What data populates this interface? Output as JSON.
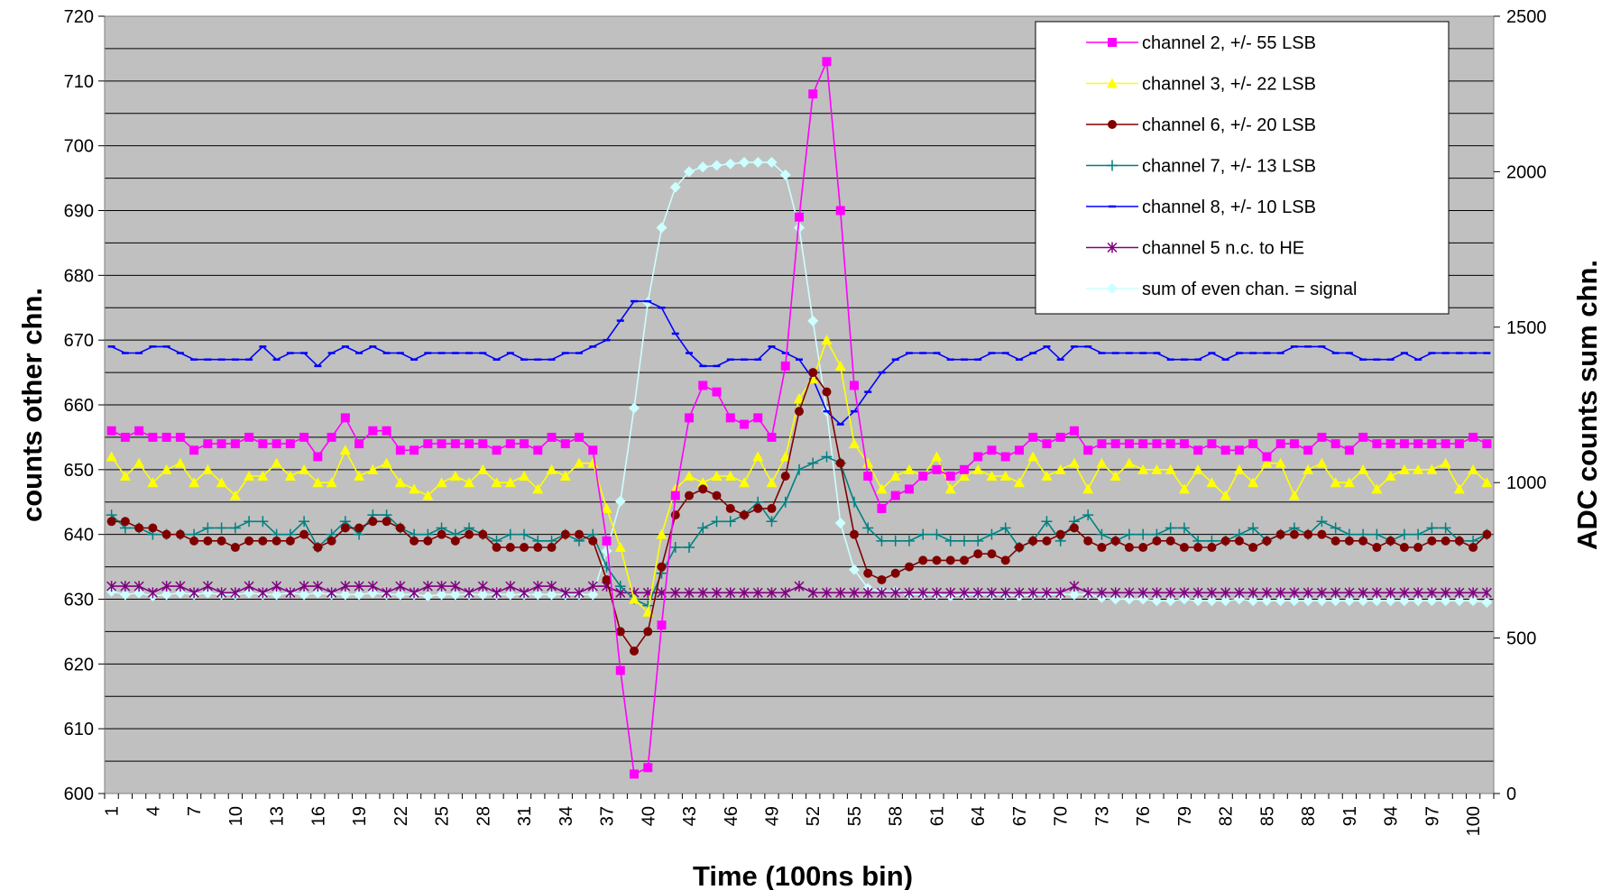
{
  "chart_data": {
    "type": "line",
    "xlabel": "Time (100ns bin)",
    "ylabel": "counts other chn.",
    "y2label": "ADC counts sum chn.",
    "ylim": [
      600,
      720
    ],
    "y2lim": [
      0,
      2500
    ],
    "y_ticks": [
      "600",
      "610",
      "620",
      "630",
      "640",
      "650",
      "660",
      "670",
      "680",
      "690",
      "700",
      "710",
      "720"
    ],
    "y2_ticks": [
      "0",
      "500",
      "1000",
      "1500",
      "2000",
      "2500"
    ],
    "x_ticks": [
      "1",
      "4",
      "7",
      "10",
      "13",
      "16",
      "19",
      "22",
      "25",
      "28",
      "31",
      "34",
      "37",
      "40",
      "43",
      "46",
      "49",
      "52",
      "55",
      "58",
      "61",
      "64",
      "67",
      "70",
      "73",
      "76",
      "79",
      "82",
      "85",
      "88",
      "91",
      "94",
      "97",
      "100"
    ],
    "grid": true,
    "legend_position": "top-right",
    "x": [
      1,
      2,
      3,
      4,
      5,
      6,
      7,
      8,
      9,
      10,
      11,
      12,
      13,
      14,
      15,
      16,
      17,
      18,
      19,
      20,
      21,
      22,
      23,
      24,
      25,
      26,
      27,
      28,
      29,
      30,
      31,
      32,
      33,
      34,
      35,
      36,
      37,
      38,
      39,
      40,
      41,
      42,
      43,
      44,
      45,
      46,
      47,
      48,
      49,
      50,
      51,
      52,
      53,
      54,
      55,
      56,
      57,
      58,
      59,
      60,
      61,
      62,
      63,
      64,
      65,
      66,
      67,
      68,
      69,
      70,
      71,
      72,
      73,
      74,
      75,
      76,
      77,
      78,
      79,
      80,
      81,
      82,
      83,
      84,
      85,
      86,
      87,
      88,
      89,
      90,
      91,
      92,
      93,
      94,
      95,
      96,
      97,
      98,
      99,
      100,
      101
    ],
    "series": [
      {
        "name": "channel 2, +/- 55 LSB",
        "color": "#ff00ff",
        "marker": "square",
        "axis": "left",
        "values": [
          656,
          655,
          656,
          655,
          655,
          655,
          653,
          654,
          654,
          654,
          655,
          654,
          654,
          654,
          655,
          652,
          655,
          658,
          654,
          656,
          656,
          653,
          653,
          654,
          654,
          654,
          654,
          654,
          653,
          654,
          654,
          653,
          655,
          654,
          655,
          653,
          639,
          619,
          603,
          604,
          626,
          646,
          658,
          663,
          662,
          658,
          657,
          658,
          655,
          666,
          689,
          708,
          713,
          690,
          663,
          649,
          644,
          646,
          647,
          649,
          650,
          649,
          650,
          652,
          653,
          652,
          653,
          655,
          654,
          655,
          656,
          653,
          654,
          654,
          654,
          654,
          654,
          654,
          654,
          653,
          654,
          653,
          653,
          654,
          652,
          654,
          654,
          653,
          655,
          654,
          653,
          655,
          654,
          654,
          654,
          654,
          654,
          654,
          654,
          655,
          654
        ]
      },
      {
        "name": "channel 3, +/- 22 LSB",
        "color": "#ffff00",
        "marker": "triangle",
        "axis": "left",
        "values": [
          652,
          649,
          651,
          648,
          650,
          651,
          648,
          650,
          648,
          646,
          649,
          649,
          651,
          649,
          650,
          648,
          648,
          653,
          649,
          650,
          651,
          648,
          647,
          646,
          648,
          649,
          648,
          650,
          648,
          648,
          649,
          647,
          650,
          649,
          651,
          651,
          644,
          638,
          630,
          628,
          640,
          647,
          649,
          648,
          649,
          649,
          648,
          652,
          648,
          652,
          661,
          664,
          670,
          666,
          654,
          651,
          647,
          649,
          650,
          649,
          652,
          647,
          649,
          650,
          649,
          649,
          648,
          652,
          649,
          650,
          651,
          647,
          651,
          649,
          651,
          650,
          650,
          650,
          647,
          650,
          648,
          646,
          650,
          648,
          651,
          651,
          646,
          650,
          651,
          648,
          648,
          650,
          647,
          649,
          650,
          650,
          650,
          651,
          647,
          650,
          648
        ]
      },
      {
        "name": "channel 6, +/- 20 LSB",
        "color": "#800000",
        "marker": "circle",
        "axis": "left",
        "values": [
          642,
          642,
          641,
          641,
          640,
          640,
          639,
          639,
          639,
          638,
          639,
          639,
          639,
          639,
          640,
          638,
          639,
          641,
          641,
          642,
          642,
          641,
          639,
          639,
          640,
          639,
          640,
          640,
          638,
          638,
          638,
          638,
          638,
          640,
          640,
          639,
          633,
          625,
          622,
          625,
          635,
          643,
          646,
          647,
          646,
          644,
          643,
          644,
          644,
          649,
          659,
          665,
          662,
          651,
          640,
          634,
          633,
          634,
          635,
          636,
          636,
          636,
          636,
          637,
          637,
          636,
          638,
          639,
          639,
          640,
          641,
          639,
          638,
          639,
          638,
          638,
          639,
          639,
          638,
          638,
          638,
          639,
          639,
          638,
          639,
          640,
          640,
          640,
          640,
          639,
          639,
          639,
          638,
          639,
          638,
          638,
          639,
          639,
          639,
          638,
          640
        ]
      },
      {
        "name": "channel 7, +/- 13 LSB",
        "color": "#008080",
        "marker": "plus",
        "axis": "left",
        "values": [
          643,
          641,
          641,
          640,
          640,
          640,
          640,
          641,
          641,
          641,
          642,
          642,
          640,
          640,
          642,
          638,
          640,
          642,
          640,
          643,
          643,
          641,
          640,
          640,
          641,
          640,
          641,
          640,
          639,
          640,
          640,
          639,
          639,
          640,
          639,
          640,
          635,
          632,
          630,
          629,
          634,
          638,
          638,
          641,
          642,
          642,
          643,
          645,
          642,
          645,
          650,
          651,
          652,
          651,
          645,
          641,
          639,
          639,
          639,
          640,
          640,
          639,
          639,
          639,
          640,
          641,
          638,
          639,
          642,
          639,
          642,
          643,
          640,
          639,
          640,
          640,
          640,
          641,
          641,
          639,
          639,
          639,
          640,
          641,
          639,
          640,
          641,
          640,
          642,
          641,
          640,
          640,
          640,
          639,
          640,
          640,
          641,
          641,
          639,
          639,
          640
        ]
      },
      {
        "name": "channel 8, +/- 10 LSB",
        "color": "#0000ff",
        "marker": "dash",
        "axis": "left",
        "values": [
          669,
          668,
          668,
          669,
          669,
          668,
          667,
          667,
          667,
          667,
          667,
          669,
          667,
          668,
          668,
          666,
          668,
          669,
          668,
          669,
          668,
          668,
          667,
          668,
          668,
          668,
          668,
          668,
          667,
          668,
          667,
          667,
          667,
          668,
          668,
          669,
          670,
          673,
          676,
          676,
          675,
          671,
          668,
          666,
          666,
          667,
          667,
          667,
          669,
          668,
          667,
          664,
          659,
          657,
          659,
          662,
          665,
          667,
          668,
          668,
          668,
          667,
          667,
          667,
          668,
          668,
          667,
          668,
          669,
          667,
          669,
          669,
          668,
          668,
          668,
          668,
          668,
          667,
          667,
          667,
          668,
          667,
          668,
          668,
          668,
          668,
          669,
          669,
          669,
          668,
          668,
          667,
          667,
          667,
          668,
          667,
          668,
          668,
          668,
          668,
          668
        ]
      },
      {
        "name": "channel 5 n.c. to HE",
        "color": "#800080",
        "marker": "star",
        "axis": "left",
        "values": [
          632,
          632,
          632,
          631,
          632,
          632,
          631,
          632,
          631,
          631,
          632,
          631,
          632,
          631,
          632,
          632,
          631,
          632,
          632,
          632,
          631,
          632,
          631,
          632,
          632,
          632,
          631,
          632,
          631,
          632,
          631,
          632,
          632,
          631,
          631,
          632,
          632,
          631,
          631,
          631,
          631,
          631,
          631,
          631,
          631,
          631,
          631,
          631,
          631,
          631,
          632,
          631,
          631,
          631,
          631,
          631,
          631,
          631,
          631,
          631,
          631,
          631,
          631,
          631,
          631,
          631,
          631,
          631,
          631,
          631,
          632,
          631,
          631,
          631,
          631,
          631,
          631,
          631,
          631,
          631,
          631,
          631,
          631,
          631,
          631,
          631,
          631,
          631,
          631,
          631,
          631,
          631,
          631,
          631,
          631,
          631,
          631,
          631,
          631,
          631,
          631
        ]
      },
      {
        "name": "sum of even chan. = signal",
        "color": "#ccffff",
        "marker": "diamond",
        "axis": "right",
        "values": [
          650,
          640,
          645,
          635,
          640,
          645,
          640,
          645,
          640,
          640,
          645,
          640,
          640,
          645,
          640,
          645,
          640,
          640,
          640,
          645,
          640,
          640,
          640,
          635,
          640,
          640,
          640,
          640,
          640,
          640,
          640,
          640,
          640,
          640,
          640,
          640,
          780,
          940,
          1240,
          1580,
          1820,
          1950,
          2000,
          2015,
          2020,
          2025,
          2030,
          2030,
          2030,
          1990,
          1820,
          1520,
          1230,
          870,
          720,
          660,
          650,
          650,
          640,
          640,
          640,
          635,
          640,
          640,
          640,
          640,
          635,
          640,
          640,
          640,
          640,
          640,
          630,
          625,
          625,
          625,
          620,
          620,
          625,
          620,
          620,
          620,
          625,
          620,
          620,
          620,
          620,
          620,
          620,
          620,
          620,
          620,
          620,
          620,
          620,
          620,
          620,
          620,
          620,
          620,
          615
        ]
      }
    ]
  }
}
